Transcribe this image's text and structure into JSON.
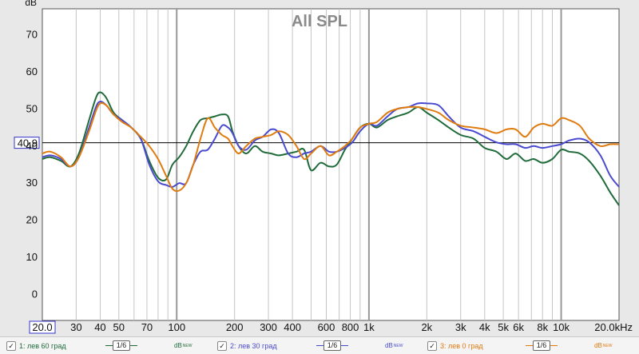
{
  "chart_data": {
    "type": "line",
    "title": "All SPL",
    "ylabel": "dB",
    "x_scale": "log",
    "xlim": [
      20,
      20000
    ],
    "ylim": [
      -7,
      77
    ],
    "y_ticks": [
      70,
      60,
      50,
      40,
      30,
      20,
      10,
      0
    ],
    "x_ticks": [
      {
        "v": 20,
        "label": "20.0"
      },
      {
        "v": 30,
        "label": "30"
      },
      {
        "v": 40,
        "label": "40"
      },
      {
        "v": 50,
        "label": "50"
      },
      {
        "v": 70,
        "label": "70"
      },
      {
        "v": 100,
        "label": "100"
      },
      {
        "v": 200,
        "label": "200"
      },
      {
        "v": 300,
        "label": "300"
      },
      {
        "v": 400,
        "label": "400"
      },
      {
        "v": 600,
        "label": "600"
      },
      {
        "v": 800,
        "label": "800"
      },
      {
        "v": 1000,
        "label": "1k"
      },
      {
        "v": 2000,
        "label": "2k"
      },
      {
        "v": 3000,
        "label": "3k"
      },
      {
        "v": 4000,
        "label": "4k"
      },
      {
        "v": 5000,
        "label": "5k"
      },
      {
        "v": 6000,
        "label": "6k"
      },
      {
        "v": 8000,
        "label": "8k"
      },
      {
        "v": 10000,
        "label": "10k"
      },
      {
        "v": 20000,
        "label": "20.0kHz"
      }
    ],
    "major_gridlines": [
      100,
      1000,
      10000
    ],
    "reference_line": {
      "value": 40.9,
      "label": "40.9"
    },
    "grid": true,
    "series": [
      {
        "name": "1: лев 60 град",
        "color": "#1f6b3a",
        "x": [
          20,
          22,
          25,
          28,
          31,
          35,
          38,
          40,
          43,
          47,
          52,
          58,
          65,
          72,
          80,
          88,
          95,
          103,
          112,
          122,
          133,
          145,
          158,
          172,
          185,
          195,
          210,
          230,
          255,
          280,
          310,
          340,
          380,
          420,
          460,
          500,
          560,
          620,
          680,
          750,
          820,
          900,
          1000,
          1100,
          1250,
          1400,
          1600,
          1800,
          2000,
          2300,
          2600,
          3000,
          3500,
          4000,
          4600,
          5200,
          5800,
          6500,
          7200,
          8000,
          9000,
          10000,
          11000,
          12500,
          14000,
          16000,
          18000,
          20000
        ],
        "y": [
          36.5,
          37,
          36,
          34.5,
          38,
          47,
          53,
          54.5,
          53,
          49,
          47,
          45,
          42,
          36,
          31.5,
          31,
          35,
          37,
          40,
          44,
          47,
          47.5,
          48,
          48.5,
          48,
          44,
          40,
          38,
          40,
          38.5,
          38,
          37.5,
          38,
          38.5,
          39,
          33.5,
          35.5,
          34.5,
          35,
          39,
          42,
          45,
          46,
          45,
          47,
          48,
          49,
          50.5,
          49,
          47,
          45,
          43,
          42,
          39.5,
          38.5,
          36.5,
          38,
          36,
          36.5,
          35.5,
          36.5,
          39,
          38.5,
          38,
          36,
          32,
          27.5,
          24
        ]
      },
      {
        "name": "2: лев 30 град",
        "color": "#4a4ad0",
        "x": [
          20,
          22,
          25,
          28,
          31,
          35,
          38,
          40,
          43,
          47,
          52,
          58,
          65,
          72,
          80,
          88,
          95,
          103,
          112,
          122,
          133,
          145,
          158,
          172,
          185,
          195,
          210,
          230,
          255,
          280,
          310,
          340,
          380,
          420,
          460,
          500,
          560,
          620,
          680,
          750,
          820,
          900,
          1000,
          1100,
          1250,
          1400,
          1600,
          1800,
          2000,
          2300,
          2600,
          3000,
          3500,
          4000,
          4600,
          5200,
          5800,
          6500,
          7200,
          8000,
          9000,
          10000,
          11000,
          12500,
          14000,
          16000,
          18000,
          20000
        ],
        "y": [
          37,
          37.5,
          36.5,
          34.5,
          37,
          45,
          50.5,
          52,
          51,
          48.5,
          47,
          45,
          42,
          35,
          30.5,
          29.5,
          29,
          30,
          30,
          35,
          38.5,
          39,
          42,
          45.5,
          45,
          43.5,
          40,
          39,
          41.5,
          42.5,
          44.5,
          43.5,
          38,
          37,
          38,
          38.5,
          40,
          38.5,
          38.5,
          39.5,
          41,
          44,
          46,
          45.5,
          48,
          50,
          50.5,
          51.5,
          51.5,
          51,
          48,
          45,
          44,
          42.5,
          41,
          40.5,
          40.5,
          39.5,
          40,
          39.5,
          40,
          40.5,
          41.5,
          42,
          41,
          37.5,
          32,
          29
        ]
      },
      {
        "name": "3: лев 0 град",
        "color": "#e07b10",
        "x": [
          20,
          22,
          25,
          28,
          31,
          35,
          38,
          40,
          43,
          47,
          52,
          58,
          65,
          72,
          80,
          88,
          95,
          103,
          112,
          122,
          133,
          145,
          158,
          172,
          185,
          195,
          210,
          230,
          255,
          280,
          310,
          340,
          380,
          420,
          460,
          500,
          560,
          620,
          680,
          750,
          820,
          900,
          1000,
          1100,
          1250,
          1400,
          1600,
          1800,
          2000,
          2300,
          2600,
          3000,
          3500,
          4000,
          4600,
          5200,
          5800,
          6500,
          7200,
          8000,
          9000,
          10000,
          11000,
          12500,
          14000,
          16000,
          18000,
          20000
        ],
        "y": [
          38,
          38.5,
          37,
          34.5,
          37,
          44,
          49.5,
          51.5,
          51,
          48.5,
          46.5,
          45,
          42.5,
          40,
          36.5,
          32,
          28.5,
          28,
          30,
          35,
          42,
          47.5,
          45,
          43,
          42,
          40,
          38,
          40,
          42,
          42.5,
          43,
          44,
          43,
          40,
          36.5,
          38,
          40,
          37.5,
          38.5,
          40,
          42,
          45,
          46,
          46.5,
          49,
          50,
          50.5,
          50.5,
          50,
          49,
          47,
          45.5,
          45,
          44.5,
          43.5,
          44.5,
          44.5,
          42.5,
          45,
          46,
          45.5,
          47.5,
          47,
          45.5,
          42,
          40,
          40.5,
          40.5
        ]
      }
    ]
  },
  "legend": {
    "items": [
      {
        "checked": "✓",
        "label": "1: лев 60 град",
        "smoothing": "1/6",
        "unit": "dB",
        "badge": "NEW"
      },
      {
        "checked": "✓",
        "label": "2: лев 30 град",
        "smoothing": "1/6",
        "unit": "dB",
        "badge": "NEW"
      },
      {
        "checked": "✓",
        "label": "3: лев 0 град",
        "smoothing": "1/6",
        "unit": "dB",
        "badge": "NEW"
      }
    ]
  },
  "colors": {
    "background": "#e8e8e8",
    "plot": "#ffffff",
    "grid": "#c4c4c4",
    "major_grid": "#999999",
    "title": "#8a8a8a"
  }
}
